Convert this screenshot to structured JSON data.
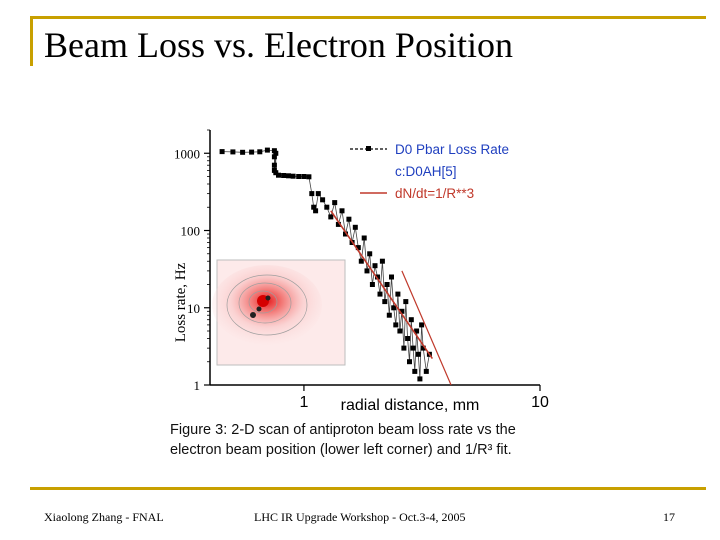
{
  "slide": {
    "title": "Beam Loss vs. Electron Position",
    "footer_left": "Xiaolong Zhang - FNAL",
    "footer_center": "LHC IR Upgrade Workshop - Oct.3-4, 2005",
    "page_number": "17"
  },
  "figure": {
    "caption_line1": "Figure 3: 2-D scan of antiproton beam loss rate vs the",
    "caption_line2": "electron beam position (lower left corner) and 1/R³ fit.",
    "colors": {
      "data": "#000000",
      "fit": "#c0392b",
      "legend_text": "#1f3fbf",
      "inset": "#e53935"
    }
  },
  "chart_data": {
    "type": "scatter",
    "title": "",
    "xlabel": "radial distance, mm",
    "ylabel": "Loss rate, Hz",
    "xscale": "log",
    "yscale": "log",
    "xlim": [
      0.4,
      10
    ],
    "ylim": [
      1,
      2000
    ],
    "x_ticks": [
      "1",
      "10"
    ],
    "y_ticks": [
      "1",
      "10",
      "100",
      "1000"
    ],
    "legend": {
      "position": "top-right",
      "entries": [
        "D0 Pbar Loss Rate",
        "c:D0AH[5]",
        "dN/dt=1/R**3"
      ]
    },
    "series": [
      {
        "name": "D0 Pbar Loss Rate",
        "points": [
          [
            0.45,
            1050
          ],
          [
            0.5,
            1040
          ],
          [
            0.55,
            1030
          ],
          [
            0.6,
            1035
          ],
          [
            0.65,
            1045
          ],
          [
            0.7,
            1100
          ],
          [
            0.75,
            1080
          ],
          [
            0.75,
            900
          ],
          [
            0.75,
            700
          ],
          [
            0.75,
            600
          ],
          [
            0.76,
            1000
          ],
          [
            0.76,
            560
          ],
          [
            0.78,
            520
          ],
          [
            0.82,
            515
          ],
          [
            0.86,
            510
          ],
          [
            0.9,
            505
          ],
          [
            0.95,
            500
          ],
          [
            1.0,
            500
          ],
          [
            1.05,
            495
          ],
          [
            1.08,
            300
          ],
          [
            1.1,
            200
          ],
          [
            1.12,
            180
          ],
          [
            1.15,
            300
          ],
          [
            1.2,
            250
          ],
          [
            1.25,
            200
          ],
          [
            1.3,
            150
          ],
          [
            1.35,
            230
          ],
          [
            1.4,
            120
          ],
          [
            1.45,
            180
          ],
          [
            1.5,
            90
          ],
          [
            1.55,
            140
          ],
          [
            1.6,
            70
          ],
          [
            1.65,
            110
          ],
          [
            1.7,
            60
          ],
          [
            1.75,
            40
          ],
          [
            1.8,
            80
          ],
          [
            1.85,
            30
          ],
          [
            1.9,
            50
          ],
          [
            1.95,
            20
          ],
          [
            2.0,
            35
          ],
          [
            2.05,
            25
          ],
          [
            2.1,
            15
          ],
          [
            2.15,
            40
          ],
          [
            2.2,
            12
          ],
          [
            2.25,
            20
          ],
          [
            2.3,
            8
          ],
          [
            2.35,
            25
          ],
          [
            2.4,
            10
          ],
          [
            2.45,
            6
          ],
          [
            2.5,
            15
          ],
          [
            2.55,
            5
          ],
          [
            2.6,
            9
          ],
          [
            2.65,
            3
          ],
          [
            2.7,
            12
          ],
          [
            2.75,
            4
          ],
          [
            2.8,
            2
          ],
          [
            2.85,
            7
          ],
          [
            2.9,
            3
          ],
          [
            2.95,
            1.5
          ],
          [
            3.0,
            5
          ],
          [
            3.05,
            2.5
          ],
          [
            3.1,
            1.2
          ],
          [
            3.15,
            6
          ],
          [
            3.2,
            3
          ],
          [
            3.3,
            1.5
          ],
          [
            3.4,
            2.5
          ]
        ]
      },
      {
        "name": "dN/dt=1/R**3",
        "points": [
          [
            1.3,
            180
          ],
          [
            3.5,
            2.2
          ]
        ]
      },
      {
        "name": "c:D0AH[5]",
        "points": [
          [
            2.6,
            30
          ],
          [
            4.2,
            1
          ]
        ]
      }
    ]
  }
}
